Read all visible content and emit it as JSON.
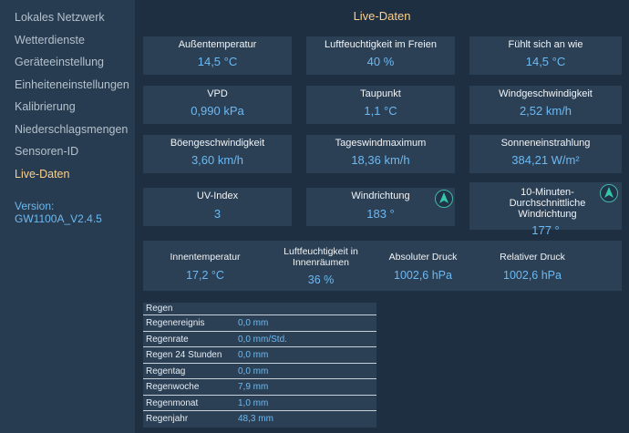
{
  "sidebar": {
    "items": [
      {
        "label": "Lokales Netzwerk"
      },
      {
        "label": "Wetterdienste"
      },
      {
        "label": "Geräteeinstellung"
      },
      {
        "label": "Einheiteneinstellungen"
      },
      {
        "label": "Kalibrierung"
      },
      {
        "label": "Niederschlagsmengen"
      },
      {
        "label": "Sensoren-ID"
      },
      {
        "label": "Live-Daten"
      }
    ],
    "version_label": "Version:",
    "version_value": "GW1100A_V2.4.5"
  },
  "main": {
    "title": "Live-Daten",
    "cards": [
      {
        "label": "Außentemperatur",
        "value": "14,5 °C"
      },
      {
        "label": "Luftfeuchtigkeit im Freien",
        "value": "40 %"
      },
      {
        "label": "Fühlt sich an wie",
        "value": "14,5 °C"
      },
      {
        "label": "VPD",
        "value": "0,990 kPa"
      },
      {
        "label": "Taupunkt",
        "value": "1,1 °C"
      },
      {
        "label": "Windgeschwindigkeit",
        "value": "2,52 km/h"
      },
      {
        "label": "Böengeschwindigkeit",
        "value": "3,60 km/h"
      },
      {
        "label": "Tageswindmaximum",
        "value": "18,36 km/h"
      },
      {
        "label": "Sonneneinstrahlung",
        "value": "384,21 W/m²"
      },
      {
        "label": "UV-Index",
        "value": "3"
      },
      {
        "label": "Windrichtung",
        "value": "183 °"
      },
      {
        "label": "10-Minuten-Durchschnittliche Windrichtung",
        "value": "177 °"
      }
    ],
    "indoor": [
      {
        "label": "Innentemperatur",
        "value": "17,2 °C"
      },
      {
        "label": "Luftfeuchtigkeit in Innenräumen",
        "value": "36 %"
      },
      {
        "label": "Absoluter Druck",
        "value": "1002,6 hPa"
      },
      {
        "label": "Relativer Druck",
        "value": "1002,6 hPa"
      }
    ],
    "rain": {
      "title": "Regen",
      "rows": [
        {
          "label": "Regenereignis",
          "value": "0,0 mm"
        },
        {
          "label": "Regenrate",
          "value": "0,0 mm/Std."
        },
        {
          "label": "Regen 24 Stunden",
          "value": "0,0 mm"
        },
        {
          "label": "Regentag",
          "value": "0,0 mm"
        },
        {
          "label": "Regenwoche",
          "value": "7,9 mm"
        },
        {
          "label": "Regenmonat",
          "value": "1,0 mm"
        },
        {
          "label": "Regenjahr",
          "value": "48,3 mm"
        }
      ]
    }
  }
}
